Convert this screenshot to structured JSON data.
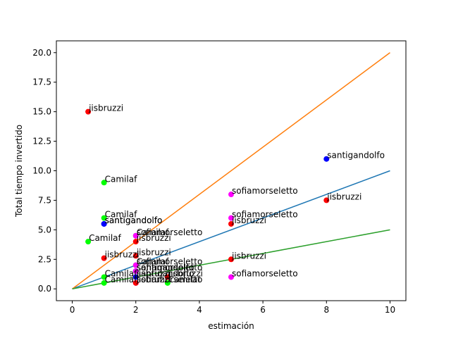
{
  "chart_data": {
    "type": "scatter",
    "xlabel": "estimación",
    "ylabel": "Total tiempo invertido",
    "xlim": [
      -0.5,
      10.5
    ],
    "ylim": [
      -1.0,
      21.0
    ],
    "x_ticks": [
      0,
      2,
      4,
      6,
      8,
      10
    ],
    "y_ticks": [
      0.0,
      2.5,
      5.0,
      7.5,
      10.0,
      12.5,
      15.0,
      17.5,
      20.0
    ],
    "x_tick_labels": [
      "0",
      "2",
      "4",
      "6",
      "8",
      "10"
    ],
    "y_tick_labels": [
      "0.0",
      "2.5",
      "5.0",
      "7.5",
      "10.0",
      "12.5",
      "15.0",
      "17.5",
      "20.0"
    ],
    "grid": false,
    "lines": [
      {
        "color": "#1f77b4",
        "x": [
          0,
          10
        ],
        "y": [
          0,
          10
        ]
      },
      {
        "color": "#ff7f0e",
        "x": [
          0,
          10
        ],
        "y": [
          0,
          20
        ]
      },
      {
        "color": "#2ca02c",
        "x": [
          0,
          10
        ],
        "y": [
          0,
          5
        ]
      }
    ],
    "points": [
      {
        "x": 0.5,
        "y": 15.0,
        "color": "#ff0000",
        "label": "jisbruzzi"
      },
      {
        "x": 1,
        "y": 9.0,
        "color": "#00ff00",
        "label": "Camilaf"
      },
      {
        "x": 1,
        "y": 6.0,
        "color": "#00ff00",
        "label": "Camilaf"
      },
      {
        "x": 1,
        "y": 5.5,
        "color": "#0000ff",
        "label": "santigandolfo"
      },
      {
        "x": 1,
        "y": 5.5,
        "color": "#0000ff",
        "label": "santigandolfo"
      },
      {
        "x": 0.5,
        "y": 4.0,
        "color": "#00ff00",
        "label": "Camilaf"
      },
      {
        "x": 1,
        "y": 2.6,
        "color": "#ff0000",
        "label": "jisbruzzi"
      },
      {
        "x": 1,
        "y": 1.0,
        "color": "#00ff00",
        "label": "Camilaf"
      },
      {
        "x": 1,
        "y": 0.5,
        "color": "#00ff00",
        "label": "Camilaf"
      },
      {
        "x": 2,
        "y": 4.5,
        "color": "#00ff00",
        "label": "Camilaf"
      },
      {
        "x": 2,
        "y": 4.5,
        "color": "#ff00ff",
        "label": "sofiamorseletto"
      },
      {
        "x": 2,
        "y": 4.0,
        "color": "#ff0000",
        "label": "jisbruzzi"
      },
      {
        "x": 2,
        "y": 2.8,
        "color": "#ff0000",
        "label": "jisbruzzi"
      },
      {
        "x": 2,
        "y": 2.0,
        "color": "#00ff00",
        "label": "Camilaf"
      },
      {
        "x": 2,
        "y": 2.0,
        "color": "#ff00ff",
        "label": "sofiamorseletto"
      },
      {
        "x": 2,
        "y": 1.5,
        "color": "#0000ff",
        "label": "santigandolfo"
      },
      {
        "x": 2,
        "y": 1.5,
        "color": "#0000ff",
        "label": "santigandolfo"
      },
      {
        "x": 2,
        "y": 1.5,
        "color": "#ff00ff",
        "label": "sofiamorseletto"
      },
      {
        "x": 2,
        "y": 1.0,
        "color": "#ff0000",
        "label": "jisbruzzi"
      },
      {
        "x": 2,
        "y": 1.0,
        "color": "#0000ff",
        "label": "santigandolfo"
      },
      {
        "x": 2,
        "y": 0.5,
        "color": "#ff00ff",
        "label": "sofiamorseletto"
      },
      {
        "x": 2,
        "y": 0.5,
        "color": "#ff0000",
        "label": "jisbruzzi"
      },
      {
        "x": 3,
        "y": 1.0,
        "color": "#ff0000",
        "label": "jisbruzzi"
      },
      {
        "x": 3,
        "y": 0.5,
        "color": "#00ff00",
        "label": "Camilaf"
      },
      {
        "x": 5,
        "y": 8.0,
        "color": "#ff00ff",
        "label": "sofiamorseletto"
      },
      {
        "x": 5,
        "y": 6.0,
        "color": "#ff00ff",
        "label": "sofiamorseletto"
      },
      {
        "x": 5,
        "y": 5.5,
        "color": "#ff0000",
        "label": "jisbruzzi"
      },
      {
        "x": 5,
        "y": 2.5,
        "color": "#ff0000",
        "label": "jisbruzzi"
      },
      {
        "x": 5,
        "y": 1.0,
        "color": "#ff00ff",
        "label": "sofiamorseletto"
      },
      {
        "x": 8,
        "y": 11.0,
        "color": "#0000ff",
        "label": "santigandolfo"
      },
      {
        "x": 8,
        "y": 7.5,
        "color": "#ff0000",
        "label": "jisbruzzi"
      }
    ]
  }
}
